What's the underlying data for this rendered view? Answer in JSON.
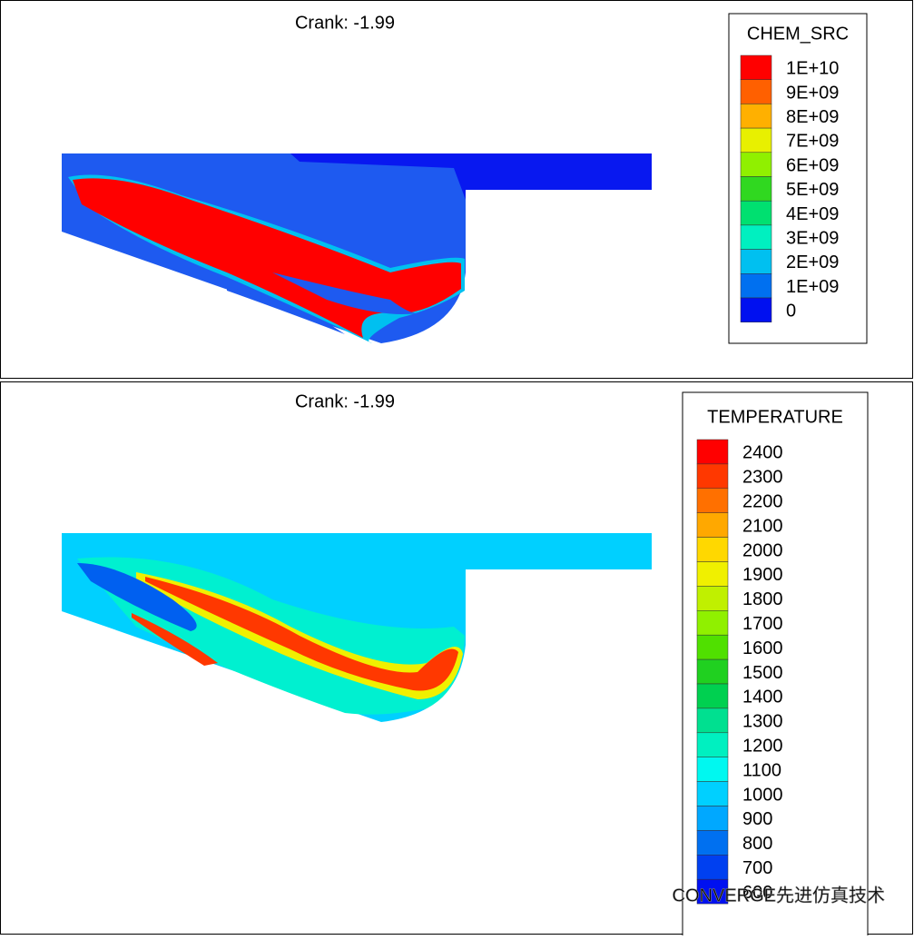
{
  "panels": [
    {
      "title": "Crank: -1.99",
      "legend": {
        "title": "CHEM_SRC",
        "labels": [
          "1E+10",
          "9E+09",
          "8E+09",
          "7E+09",
          "6E+09",
          "5E+09",
          "4E+09",
          "3E+09",
          "2E+09",
          "1E+09",
          "0"
        ],
        "colors": [
          "#ff0000",
          "#ff6000",
          "#ffb000",
          "#e8f000",
          "#90f000",
          "#30d820",
          "#00e070",
          "#00f0c0",
          "#00c0f0",
          "#0070f0",
          "#0010f0"
        ]
      }
    },
    {
      "title": "Crank: -1.99",
      "legend": {
        "title": "TEMPERATURE",
        "labels": [
          "2400",
          "2300",
          "2200",
          "2100",
          "2000",
          "1900",
          "1800",
          "1700",
          "1600",
          "1500",
          "1400",
          "1300",
          "1200",
          "1100",
          "1000",
          "900",
          "800",
          "700",
          "600"
        ],
        "colors": [
          "#ff0000",
          "#ff3800",
          "#ff7000",
          "#ffa800",
          "#ffd800",
          "#f0f000",
          "#c0f000",
          "#90f000",
          "#50e000",
          "#20d020",
          "#00d050",
          "#00e090",
          "#00f0c0",
          "#00f8f0",
          "#00d0ff",
          "#00a8ff",
          "#0070f0",
          "#0040f0",
          "#0010f0"
        ]
      }
    }
  ],
  "watermark": "CONVERGE先进仿真技术"
}
